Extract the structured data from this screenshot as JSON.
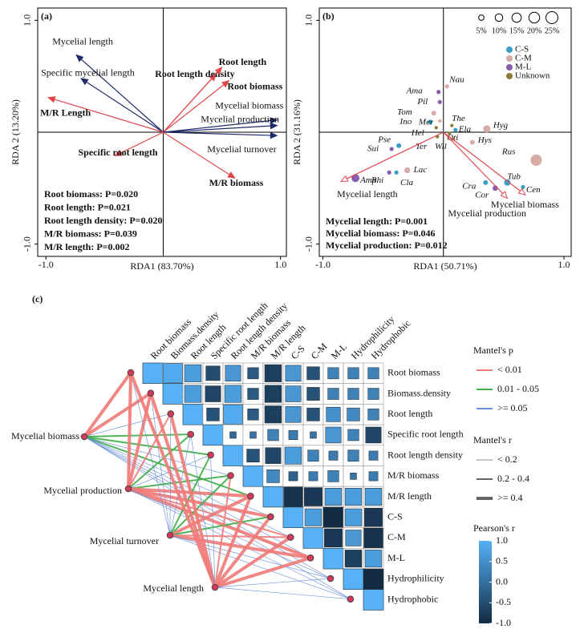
{
  "chart_data": [
    {
      "type": "biplot",
      "label": "(a)",
      "xlabel": "RDA1  (83.70%)",
      "ylabel": "RDA 2 (13.20%)",
      "xlim": [
        -1.07,
        1.05
      ],
      "ylim": [
        -1.11,
        1.11
      ],
      "xticks": [
        {
          "value": -1,
          "label": "-1.0"
        },
        {
          "value": 1,
          "label": "1.0"
        }
      ],
      "yticks": [
        {
          "value": -1,
          "label": "-1.0"
        },
        {
          "value": 1,
          "label": "1.0"
        }
      ],
      "arrows": [
        {
          "name": "Mycelial length",
          "x": -0.74,
          "y": 0.69,
          "color": "#1f2a6b"
        },
        {
          "name": "Specific mycelial length",
          "x": -0.7,
          "y": 0.48,
          "color": "#1f2a6b"
        },
        {
          "name": "M/R Length",
          "x": -0.98,
          "y": 0.31,
          "color": "#e0474c"
        },
        {
          "name": "Root length density",
          "x": 0.45,
          "y": 0.52,
          "color": "#e0474c"
        },
        {
          "name": "Root length",
          "x": 0.5,
          "y": 0.58,
          "color": "#e0474c"
        },
        {
          "name": "Root biomass",
          "x": 0.56,
          "y": 0.46,
          "color": "#e0474c"
        },
        {
          "name": "Mycelial biomass",
          "x": 0.97,
          "y": 0.11,
          "color": "#1f2a6b"
        },
        {
          "name": "Mycelial production",
          "x": 0.97,
          "y": 0.06,
          "color": "#1f2a6b"
        },
        {
          "name": "Mycelial turnover",
          "x": 0.97,
          "y": -0.03,
          "color": "#1f2a6b"
        },
        {
          "name": "Specific root length",
          "x": -0.41,
          "y": -0.21,
          "color": "#e0474c"
        },
        {
          "name": "M/R biomass",
          "x": 0.61,
          "y": -0.41,
          "color": "#e0474c"
        }
      ],
      "annotations": [
        "Root biomass: P=0.020",
        "Root length: P=0.021",
        "Root length density: P=0.020",
        "M/R biomass: P=0.039",
        "M/R length: P=0.002"
      ]
    },
    {
      "type": "biplot",
      "label": "(b)",
      "xlabel": "RDA1  (50.71%)",
      "ylabel": "RDA 2 (31.16%)",
      "xlim": [
        -1.03,
        1.06
      ],
      "ylim": [
        -1.11,
        1.11
      ],
      "xticks": [
        {
          "value": -1,
          "label": "-1.0"
        },
        {
          "value": 1,
          "label": "1.0"
        }
      ],
      "yticks": [
        {
          "value": -1,
          "label": "-1.0"
        },
        {
          "value": 1,
          "label": "1.0"
        }
      ],
      "arrows": [
        {
          "name": "Mycelial length",
          "x": -0.85,
          "y": -0.44,
          "color": "#e0474c"
        },
        {
          "name": "Mycelial biomass",
          "x": 0.68,
          "y": -0.56,
          "color": "#e0474c"
        },
        {
          "name": "Mycelial production",
          "x": 0.53,
          "y": -0.59,
          "color": "#e0474c"
        }
      ],
      "groups": [
        {
          "name": "C-S",
          "color": "#3a9fc8"
        },
        {
          "name": "C-M",
          "color": "#d8aaa8"
        },
        {
          "name": "M-L",
          "color": "#8a5cb0"
        },
        {
          "name": "Unknown",
          "color": "#8c7a3a"
        }
      ],
      "sizes": [
        {
          "value": 5,
          "label": "5%"
        },
        {
          "value": 10,
          "label": "10%"
        },
        {
          "value": 15,
          "label": "15%"
        },
        {
          "value": 20,
          "label": "20%"
        },
        {
          "value": 25,
          "label": "25%"
        }
      ],
      "points": [
        {
          "name": "Nau",
          "x": 0.03,
          "y": 0.41,
          "size": 3,
          "group": "C-M"
        },
        {
          "name": "Ama",
          "x": -0.04,
          "y": 0.36,
          "size": 3,
          "group": "M-L"
        },
        {
          "name": "Pil",
          "x": -0.03,
          "y": 0.27,
          "size": 3,
          "group": "M-L"
        },
        {
          "name": "Tom",
          "x": -0.08,
          "y": 0.17,
          "size": 4,
          "group": "C-M"
        },
        {
          "name": "Ino",
          "x": -0.11,
          "y": 0.09,
          "size": 4,
          "group": "C-S"
        },
        {
          "name": "Mer",
          "x": -0.03,
          "y": 0.1,
          "size": 2,
          "group": "C-M"
        },
        {
          "name": "The",
          "x": 0.07,
          "y": 0.06,
          "size": 2,
          "group": "Unknown"
        },
        {
          "name": "Hel",
          "x": -0.06,
          "y": 0.04,
          "size": 2,
          "group": "Unknown"
        },
        {
          "name": "Ela",
          "x": 0.1,
          "y": 0.02,
          "size": 3,
          "group": "C-S"
        },
        {
          "name": "Hyg",
          "x": 0.36,
          "y": 0.03,
          "size": 9,
          "group": "C-M"
        },
        {
          "name": "Oti",
          "x": 0.05,
          "y": -0.01,
          "size": 2,
          "group": "Unknown"
        },
        {
          "name": "Ter",
          "x": -0.05,
          "y": -0.04,
          "size": 2,
          "group": "Unknown"
        },
        {
          "name": "Wil",
          "x": 0.08,
          "y": -0.06,
          "size": 2,
          "group": "Unknown"
        },
        {
          "name": "Hys",
          "x": 0.24,
          "y": -0.09,
          "size": 4,
          "group": "C-M"
        },
        {
          "name": "Pse",
          "x": -0.37,
          "y": -0.12,
          "size": 4,
          "group": "C-S"
        },
        {
          "name": "Sui",
          "x": -0.43,
          "y": -0.15,
          "size": 3,
          "group": "M-L"
        },
        {
          "name": "Rus",
          "x": 0.77,
          "y": -0.25,
          "size": 22,
          "group": "C-M"
        },
        {
          "name": "Lac",
          "x": -0.3,
          "y": -0.34,
          "size": 6,
          "group": "C-M"
        },
        {
          "name": "Amp",
          "x": -0.73,
          "y": -0.41,
          "size": 11,
          "group": "M-L"
        },
        {
          "name": "Rhi",
          "x": -0.45,
          "y": -0.36,
          "size": 3,
          "group": "M-L"
        },
        {
          "name": "Cla",
          "x": -0.39,
          "y": -0.36,
          "size": 3,
          "group": "C-S"
        },
        {
          "name": "Tub",
          "x": 0.53,
          "y": -0.45,
          "size": 7,
          "group": "C-S"
        },
        {
          "name": "Cra",
          "x": 0.35,
          "y": -0.45,
          "size": 4,
          "group": "C-S"
        },
        {
          "name": "Cor",
          "x": 0.43,
          "y": -0.5,
          "size": 5,
          "group": "M-L"
        },
        {
          "name": "Cen",
          "x": 0.66,
          "y": -0.49,
          "size": 3,
          "group": "C-S"
        }
      ],
      "annotations": [
        "Mycelial length: P=0.001",
        "Mycelial biomass: P=0.046",
        "Mycelial production: P=0.012"
      ]
    },
    {
      "type": "corrplot",
      "label": "(c)",
      "variables": [
        "Root biomass",
        "Biomass.density",
        "Root length",
        "Specific root length",
        "Root length density",
        "M/R biomass",
        "M/R length",
        "C-S",
        "C-M",
        "M-L",
        "Hydrophilicity",
        "Hydrophobic"
      ],
      "r": [
        [
          1,
          0.9,
          0.7,
          -0.5,
          0.6,
          -0.3,
          -0.7,
          0.6,
          -0.4,
          0.3,
          0.3,
          0.3
        ],
        [
          1,
          0.7,
          -0.6,
          0.7,
          -0.3,
          -0.7,
          0.6,
          -0.4,
          0.3,
          0.3,
          0.3
        ],
        [
          1,
          -0.4,
          0.9,
          -0.3,
          -0.7,
          0.6,
          -0.4,
          0.5,
          0.4,
          0.3
        ],
        [
          1,
          -0.1,
          0.1,
          0.3,
          0.2,
          0.1,
          0.6,
          0.3,
          -0.6
        ],
        [
          1,
          -0.4,
          -0.6,
          0.7,
          0.3,
          0.2,
          0.3,
          0.2
        ],
        [
          1,
          0.4,
          -0.2,
          0.2,
          0.3,
          0.1,
          0.2
        ],
        [
          1,
          -0.9,
          -0.8,
          0.7,
          0.7,
          0.7
        ],
        [
          1,
          0.7,
          -1,
          0.7,
          -0.8
        ],
        [
          1,
          -0.8,
          0.6,
          -0.9
        ],
        [
          1,
          -0.7,
          0.7
        ],
        [
          1,
          -1
        ],
        [
          1
        ]
      ],
      "clim": [
        -1,
        1
      ],
      "colors": [
        "#132b43",
        "#56b1f7"
      ],
      "colorbar_title": "Pearson's r",
      "cticks": [
        {
          "value": 1,
          "label": "1.0"
        },
        0.5,
        {
          "value": 0,
          "label": "0.0"
        },
        -0.5,
        {
          "value": -1,
          "label": "-1.0"
        }
      ],
      "mantel_p_title": "Mantel's p",
      "mantel_p_classes": [
        {
          "label": "< 0.01",
          "color": "#f07b78"
        },
        {
          "label": "0.01 - 0.05",
          "color": "#3fae49"
        },
        {
          "label": ">= 0.05",
          "color": "#6a8fd8"
        }
      ],
      "mantel_r_title": "Mantel's r",
      "mantel_r_classes": [
        "< 0.2",
        "0.2 - 0.4",
        ">= 0.4"
      ],
      "mantel": [
        {
          "name": "Mycelial biomass",
          "p": [
            "< 0.01",
            "< 0.01",
            ">= 0.05",
            "0.01 - 0.05",
            "0.01 - 0.05",
            ">= 0.05",
            "0.01 - 0.05",
            ">= 0.05",
            ">= 0.05",
            ">= 0.05",
            ">= 0.05",
            ">= 0.05"
          ],
          "r": [
            ">= 0.4",
            ">= 0.4",
            "< 0.2",
            "0.2 - 0.4",
            "0.2 - 0.4",
            "< 0.2",
            "0.2 - 0.4",
            "< 0.2",
            "< 0.2",
            "< 0.2",
            "< 0.2",
            "< 0.2"
          ]
        },
        {
          "name": "Mycelial production",
          "p": [
            "< 0.01",
            "< 0.01",
            "< 0.01",
            "0.01 - 0.05",
            ">= 0.05",
            "0.01 - 0.05",
            "< 0.01",
            "< 0.01",
            "< 0.01",
            "< 0.01",
            ">= 0.05",
            ">= 0.05"
          ],
          "r": [
            ">= 0.4",
            ">= 0.4",
            "0.2 - 0.4",
            "0.2 - 0.4",
            "< 0.2",
            "0.2 - 0.4",
            ">= 0.4",
            ">= 0.4",
            "0.2 - 0.4",
            ">= 0.4",
            "< 0.2",
            "< 0.2"
          ]
        },
        {
          "name": "Mycelial turnover",
          "p": [
            ">= 0.05",
            ">= 0.05",
            ">= 0.05",
            ">= 0.05",
            "0.01 - 0.05",
            "0.01 - 0.05",
            "< 0.01",
            "0.01 - 0.05",
            "< 0.01",
            "< 0.01",
            ">= 0.05",
            ">= 0.05"
          ],
          "r": [
            "< 0.2",
            "< 0.2",
            "< 0.2",
            "< 0.2",
            "0.2 - 0.4",
            "0.2 - 0.4",
            ">= 0.4",
            "0.2 - 0.4",
            "0.2 - 0.4",
            ">= 0.4",
            "< 0.2",
            "< 0.2"
          ]
        },
        {
          "name": "Mycelial length",
          "p": [
            "< 0.01",
            "< 0.01",
            "< 0.01",
            ">= 0.05",
            ">= 0.05",
            "< 0.01",
            "< 0.01",
            "< 0.01",
            "< 0.01",
            "< 0.01",
            ">= 0.05",
            ">= 0.05"
          ],
          "r": [
            ">= 0.4",
            ">= 0.4",
            ">= 0.4",
            "< 0.2",
            "< 0.2",
            "0.2 - 0.4",
            ">= 0.4",
            ">= 0.4",
            ">= 0.4",
            ">= 0.4",
            "< 0.2",
            "< 0.2"
          ]
        }
      ]
    }
  ]
}
